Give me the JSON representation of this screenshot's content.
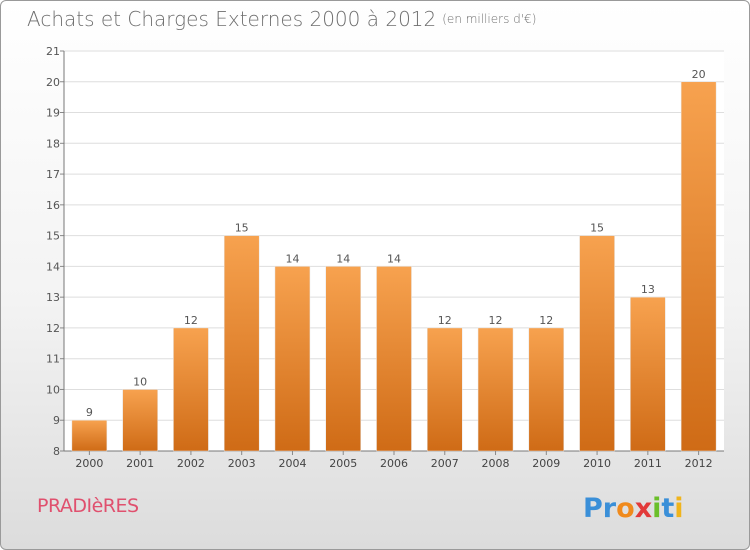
{
  "header": {
    "title": "Achats et Charges Externes 2000 à 2012",
    "subtitle": "(en milliers d'€)"
  },
  "footer": {
    "commune": "PRADIèRES",
    "logo_text": "Proxiti"
  },
  "colors": {
    "bar_light": "#f7a24f",
    "bar_dark": "#cf6b16",
    "commune_text": "#e0506e",
    "logo_letters": [
      "#3a8fd8",
      "#3a8fd8",
      "#f08a1c",
      "#e23a3a",
      "#6bbf2a",
      "#3a8fd8",
      "#f0b41c"
    ]
  },
  "chart_data": {
    "type": "bar",
    "categories": [
      "2000",
      "2001",
      "2002",
      "2003",
      "2004",
      "2005",
      "2006",
      "2007",
      "2008",
      "2009",
      "2010",
      "2011",
      "2012"
    ],
    "values": [
      9,
      10,
      12,
      15,
      14,
      14,
      14,
      12,
      12,
      12,
      15,
      13,
      20
    ],
    "data_labels": [
      "9",
      "10",
      "12",
      "15",
      "14",
      "14",
      "14",
      "12",
      "12",
      "12",
      "15",
      "13",
      "20"
    ],
    "ylim": [
      8,
      21
    ],
    "yticks": [
      "8",
      "9",
      "10",
      "11",
      "12",
      "13",
      "14",
      "15",
      "16",
      "17",
      "18",
      "19",
      "20",
      "21"
    ],
    "grid": true,
    "title": "Achats et Charges Externes 2000 à 2012",
    "subtitle": "(en milliers d'€)"
  }
}
